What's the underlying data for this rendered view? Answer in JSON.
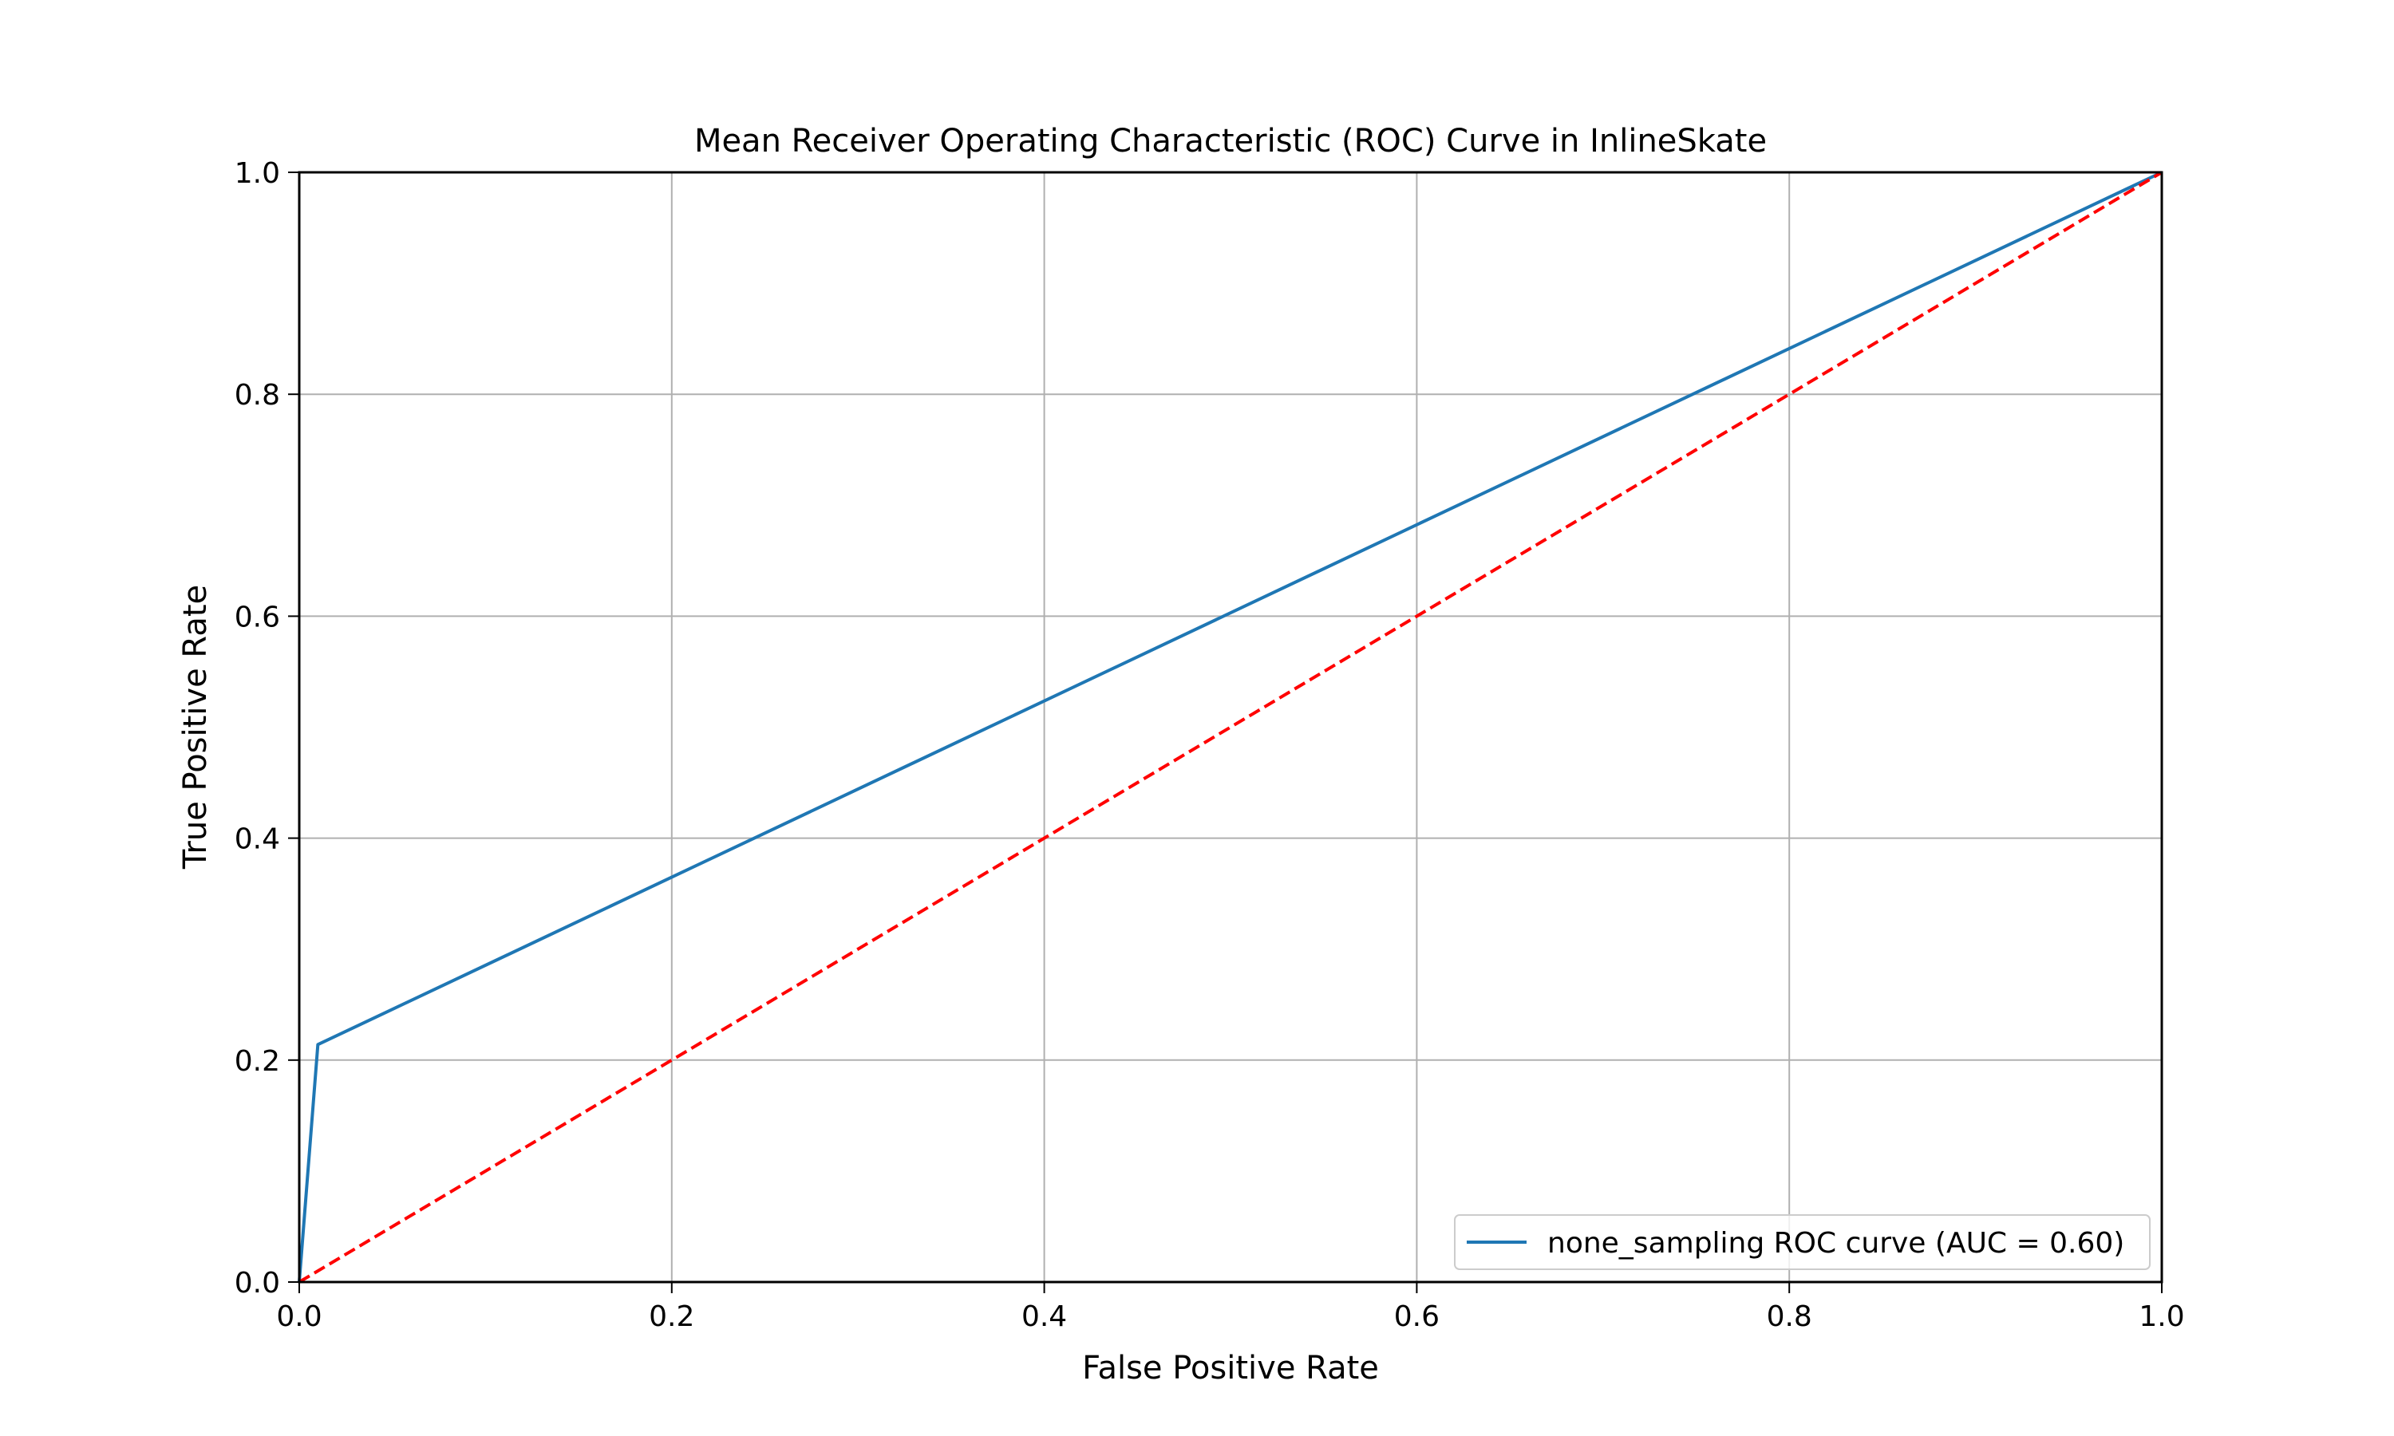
{
  "chart_data": {
    "type": "line",
    "title": "Mean Receiver Operating Characteristic (ROC) Curve in InlineSkate",
    "xlabel": "False Positive Rate",
    "ylabel": "True Positive Rate",
    "xlim": [
      0.0,
      1.0
    ],
    "ylim": [
      0.0,
      1.0
    ],
    "xticks": [
      "0.0",
      "0.2",
      "0.4",
      "0.6",
      "0.8",
      "1.0"
    ],
    "yticks": [
      "0.0",
      "0.2",
      "0.4",
      "0.6",
      "0.8",
      "1.0"
    ],
    "grid": true,
    "legend_position": "lower-right",
    "series": [
      {
        "name": "none_sampling ROC curve (AUC = 0.60)",
        "color": "#1f77b4",
        "style": "solid",
        "x": [
          0.0,
          0.01,
          1.0
        ],
        "y": [
          0.0,
          0.214,
          1.0
        ]
      },
      {
        "color": "#ff0000",
        "style": "dashed",
        "x": [
          0.0,
          1.0
        ],
        "y": [
          0.0,
          1.0
        ]
      }
    ]
  }
}
